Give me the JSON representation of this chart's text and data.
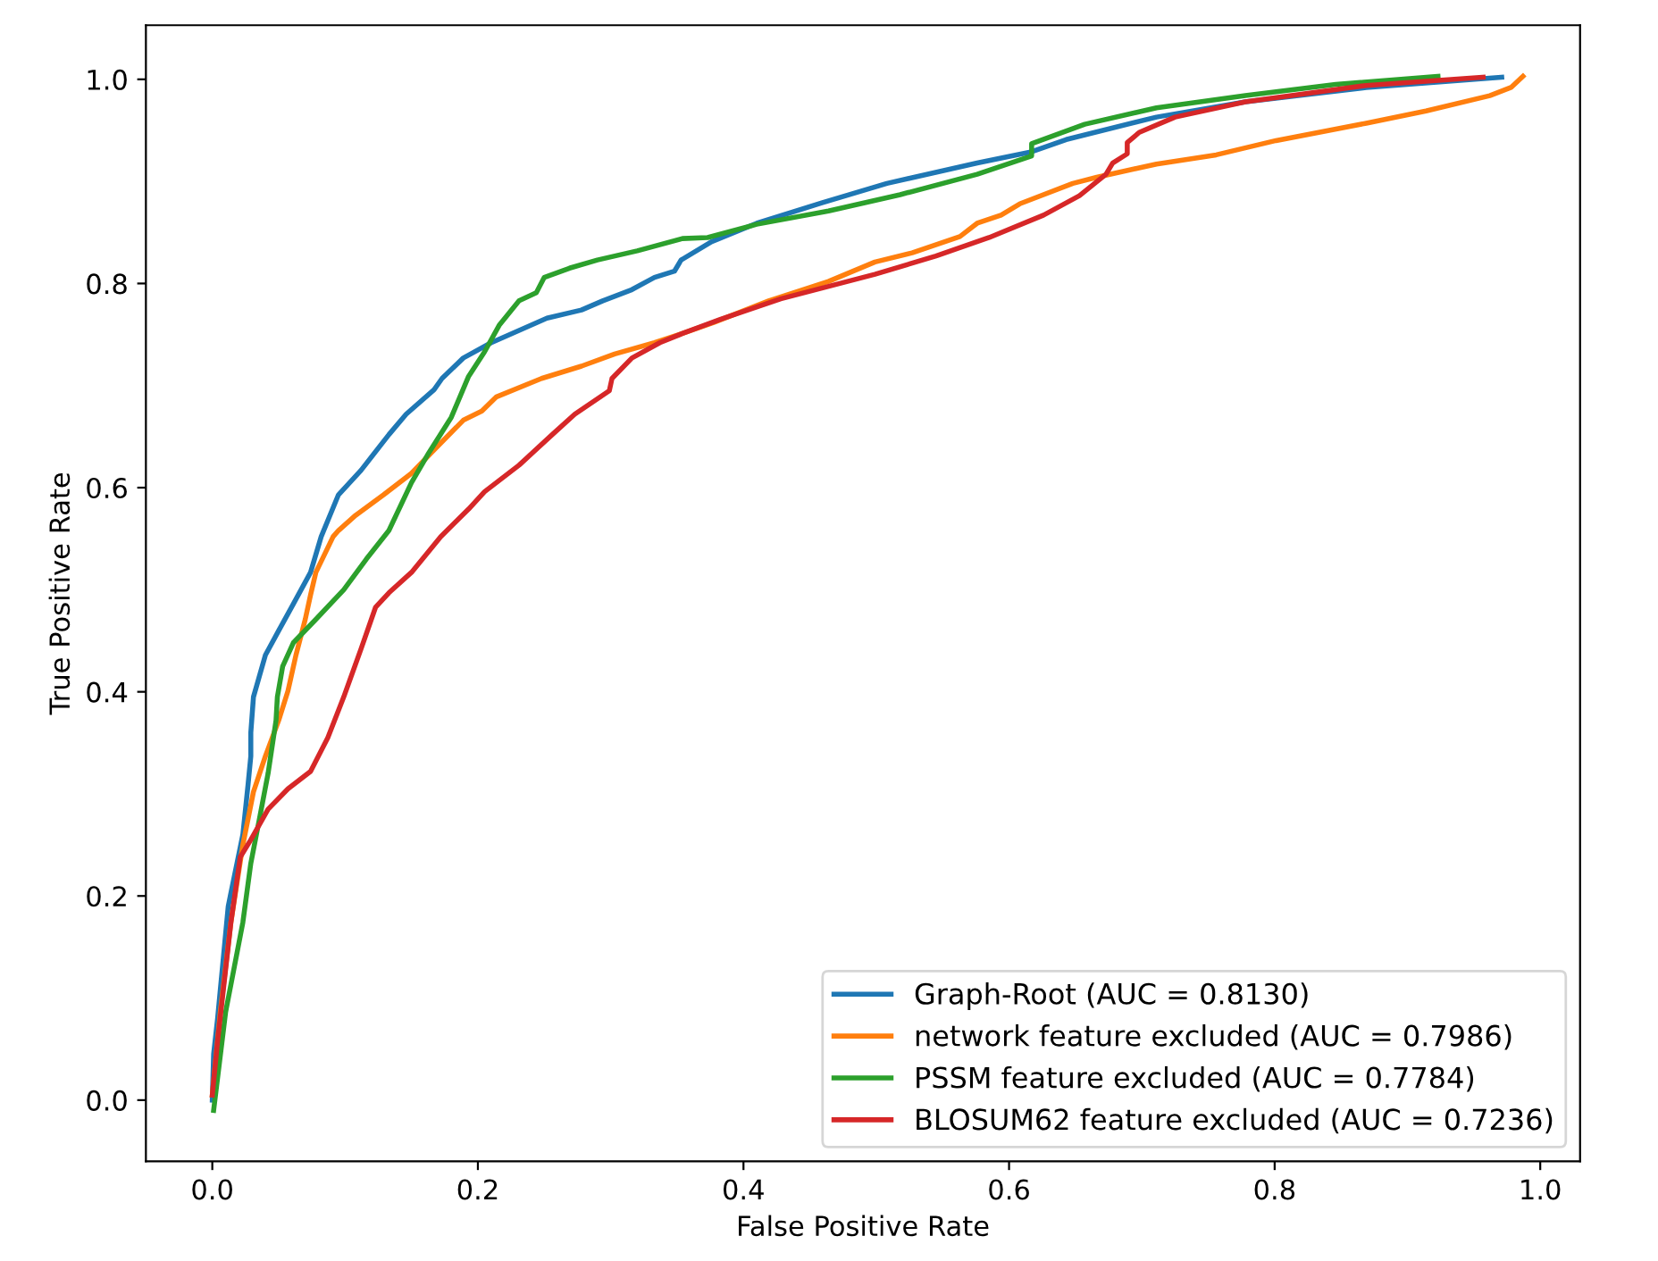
{
  "chart_data": {
    "type": "line",
    "xlabel": "False Positive Rate",
    "ylabel": "True Positive Rate",
    "xlim": [
      -0.05,
      1.03
    ],
    "ylim": [
      -0.06,
      1.053
    ],
    "xticks": [
      {
        "value": 0,
        "label": "0.0"
      },
      {
        "value": 0.2,
        "label": "0.2"
      },
      {
        "value": 0.4,
        "label": "0.4"
      },
      {
        "value": 0.6,
        "label": "0.6"
      },
      {
        "value": 0.8,
        "label": "0.8"
      },
      {
        "value": 1,
        "label": "1.0"
      }
    ],
    "yticks": [
      {
        "value": 0,
        "label": "0.0"
      },
      {
        "value": 0.2,
        "label": "0.2"
      },
      {
        "value": 0.4,
        "label": "0.4"
      },
      {
        "value": 0.6,
        "label": "0.6"
      },
      {
        "value": 0.8,
        "label": "0.8"
      },
      {
        "value": 1,
        "label": "1.0"
      }
    ],
    "grid": false,
    "legend": "bottom right",
    "marker": "none",
    "line_style": "solid",
    "series": [
      {
        "name": "Graph-Root (AUC = 0.8130)",
        "color": "#1f77b4",
        "x": [
          0,
          0.001,
          0.004,
          0.012,
          0.023,
          0.027,
          0.029,
          0.029,
          0.031,
          0.04,
          0.05,
          0.061,
          0.074,
          0.082,
          0.095,
          0.112,
          0.133,
          0.146,
          0.167,
          0.173,
          0.189,
          0.21,
          0.252,
          0.278,
          0.294,
          0.316,
          0.333,
          0.348,
          0.353,
          0.376,
          0.41,
          0.459,
          0.508,
          0.576,
          0.617,
          0.643,
          0.711,
          0.778,
          0.869,
          0.971
        ],
        "values": [
          0.0,
          0.045,
          0.08,
          0.19,
          0.26,
          0.31,
          0.337,
          0.36,
          0.395,
          0.436,
          0.46,
          0.486,
          0.517,
          0.552,
          0.593,
          0.617,
          0.652,
          0.672,
          0.696,
          0.707,
          0.727,
          0.742,
          0.766,
          0.774,
          0.783,
          0.794,
          0.806,
          0.812,
          0.823,
          0.841,
          0.859,
          0.879,
          0.898,
          0.918,
          0.929,
          0.941,
          0.963,
          0.978,
          0.992,
          1.002
        ]
      },
      {
        "name": "network feature excluded (AUC = 0.7986)",
        "color": "#ff7f0e",
        "x": [
          0,
          0.006,
          0.014,
          0.023,
          0.031,
          0.04,
          0.05,
          0.057,
          0.063,
          0.07,
          0.074,
          0.078,
          0.091,
          0.095,
          0.108,
          0.129,
          0.15,
          0.167,
          0.189,
          0.203,
          0.214,
          0.248,
          0.278,
          0.303,
          0.333,
          0.354,
          0.378,
          0.419,
          0.464,
          0.499,
          0.527,
          0.563,
          0.576,
          0.594,
          0.608,
          0.648,
          0.666,
          0.711,
          0.756,
          0.801,
          0.869,
          0.914,
          0.962,
          0.978,
          0.987
        ],
        "values": [
          0.005,
          0.086,
          0.174,
          0.25,
          0.302,
          0.337,
          0.372,
          0.401,
          0.436,
          0.471,
          0.495,
          0.517,
          0.552,
          0.558,
          0.573,
          0.593,
          0.614,
          0.637,
          0.666,
          0.675,
          0.689,
          0.707,
          0.719,
          0.731,
          0.742,
          0.751,
          0.762,
          0.783,
          0.802,
          0.821,
          0.83,
          0.846,
          0.859,
          0.867,
          0.878,
          0.898,
          0.904,
          0.917,
          0.926,
          0.94,
          0.957,
          0.969,
          0.984,
          0.992,
          1.003
        ]
      },
      {
        "name": "PSSM feature excluded (AUC = 0.7784)",
        "color": "#2ca02c",
        "x": [
          0.001,
          0.01,
          0.023,
          0.029,
          0.036,
          0.042,
          0.048,
          0.049,
          0.053,
          0.061,
          0.078,
          0.099,
          0.116,
          0.133,
          0.15,
          0.163,
          0.18,
          0.193,
          0.205,
          0.216,
          0.231,
          0.244,
          0.25,
          0.269,
          0.29,
          0.32,
          0.354,
          0.373,
          0.41,
          0.464,
          0.518,
          0.576,
          0.617,
          0.617,
          0.617,
          0.657,
          0.711,
          0.778,
          0.846,
          0.923
        ],
        "values": [
          -0.01,
          0.086,
          0.174,
          0.232,
          0.279,
          0.32,
          0.372,
          0.395,
          0.425,
          0.448,
          0.471,
          0.5,
          0.53,
          0.558,
          0.605,
          0.634,
          0.669,
          0.709,
          0.733,
          0.759,
          0.783,
          0.791,
          0.806,
          0.815,
          0.823,
          0.832,
          0.844,
          0.845,
          0.858,
          0.871,
          0.887,
          0.907,
          0.925,
          0.932,
          0.937,
          0.956,
          0.972,
          0.984,
          0.995,
          1.003
        ]
      },
      {
        "name": "BLOSUM62 feature excluded (AUC = 0.7236)",
        "color": "#d62728",
        "x": [
          0,
          0.004,
          0.014,
          0.021,
          0.029,
          0.042,
          0.057,
          0.074,
          0.087,
          0.099,
          0.112,
          0.123,
          0.133,
          0.15,
          0.172,
          0.193,
          0.205,
          0.231,
          0.256,
          0.273,
          0.299,
          0.301,
          0.316,
          0.337,
          0.354,
          0.383,
          0.428,
          0.499,
          0.545,
          0.585,
          0.626,
          0.653,
          0.673,
          0.678,
          0.689,
          0.689,
          0.698,
          0.725,
          0.778,
          0.869,
          0.957
        ],
        "values": [
          0.005,
          0.058,
          0.174,
          0.238,
          0.255,
          0.285,
          0.305,
          0.322,
          0.355,
          0.395,
          0.442,
          0.483,
          0.497,
          0.517,
          0.552,
          0.579,
          0.596,
          0.622,
          0.652,
          0.672,
          0.695,
          0.707,
          0.727,
          0.742,
          0.751,
          0.765,
          0.785,
          0.809,
          0.827,
          0.845,
          0.867,
          0.886,
          0.907,
          0.918,
          0.927,
          0.938,
          0.948,
          0.963,
          0.978,
          0.994,
          1.002
        ]
      }
    ]
  }
}
